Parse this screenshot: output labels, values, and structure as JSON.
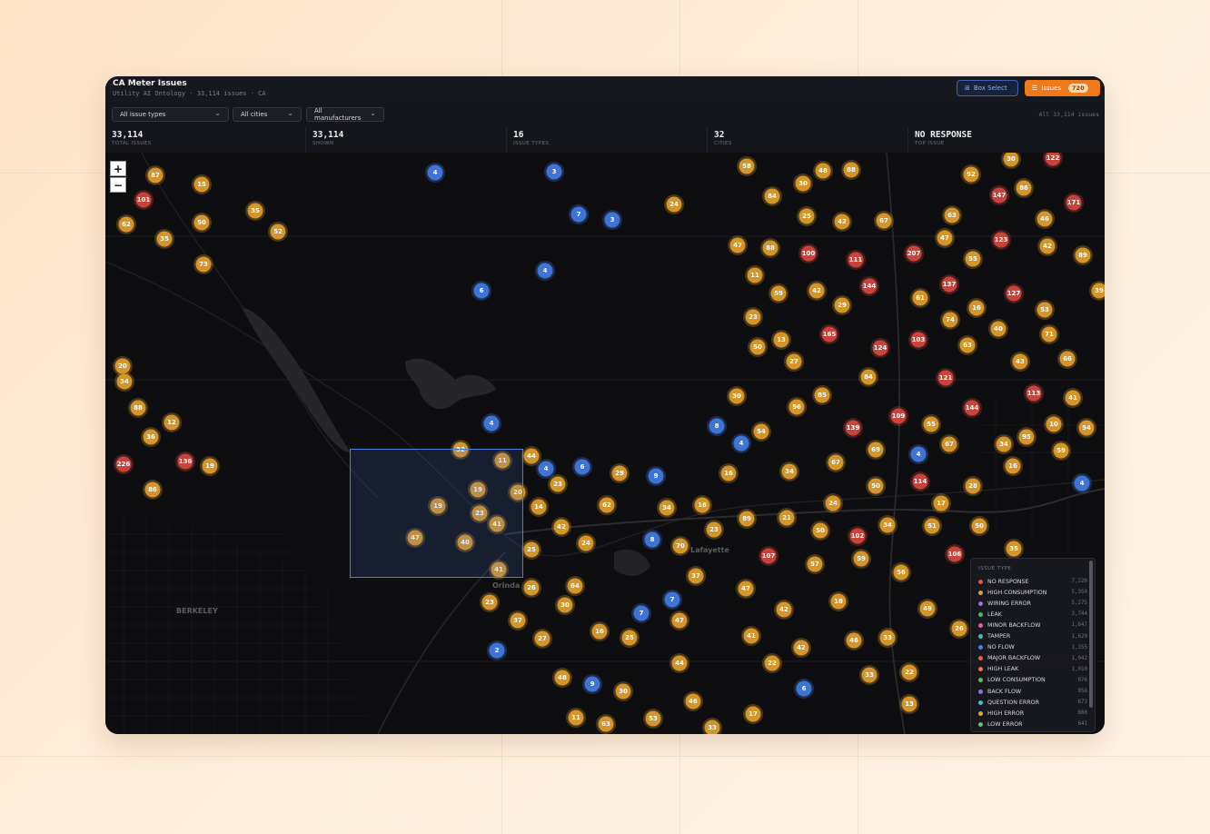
{
  "header": {
    "title": "CA Meter Issues",
    "subtitle": "Utility AI Ontology · 33,114 issues · CA",
    "box_select": "Box Select",
    "issues_button": "Issues",
    "issues_badge": "720"
  },
  "filters": {
    "issue_types": "All issue types",
    "cities": "All cities",
    "manufacturers": "All manufacturers",
    "summary": "All 33,114 issues"
  },
  "stats": [
    {
      "value": "33,114",
      "label": "TOTAL ISSUES"
    },
    {
      "value": "33,114",
      "label": "SHOWN"
    },
    {
      "value": "16",
      "label": "ISSUE TYPES"
    },
    {
      "value": "32",
      "label": "CITIES"
    },
    {
      "value": "NO RESPONSE",
      "label": "TOP ISSUE"
    }
  ],
  "map": {
    "zoom_in": "+",
    "zoom_out": "−",
    "places": [
      "BERKELEY",
      "Orinda",
      "Lafayette"
    ],
    "clusters": [
      {
        "color": "#d4962a",
        "counts": [
          87,
          15,
          62,
          50,
          35,
          52,
          35,
          73,
          24,
          58,
          30,
          48,
          88,
          84,
          25,
          42,
          67,
          47,
          88,
          47,
          55,
          63,
          92,
          30,
          86,
          46,
          42,
          89,
          11,
          59,
          42,
          29,
          61,
          39,
          23,
          50,
          13,
          74,
          16,
          53,
          40,
          71,
          63,
          27,
          84,
          43,
          66,
          30,
          56,
          85,
          41,
          55,
          10,
          54,
          54,
          34,
          95,
          67,
          69,
          59,
          16,
          67,
          34,
          50,
          28,
          20,
          34,
          88,
          12,
          36,
          19,
          86,
          32,
          11,
          44,
          29,
          16,
          23,
          19,
          20,
          19,
          23,
          41,
          14,
          62,
          34,
          16,
          24,
          17,
          47,
          40,
          42,
          24,
          70,
          23,
          89,
          21,
          50,
          34,
          51,
          50,
          25,
          41,
          35,
          57,
          59,
          56,
          26,
          64,
          37,
          47,
          23,
          30,
          47,
          42,
          18,
          49,
          37,
          16,
          25,
          27,
          41,
          42,
          46,
          33,
          26,
          44,
          22,
          33,
          22,
          48,
          30,
          46,
          13,
          11,
          63,
          53,
          17,
          33
        ]
      },
      {
        "color": "#c9433a",
        "counts": [
          101,
          100,
          111,
          207,
          122,
          147,
          171,
          123,
          144,
          137,
          127,
          165,
          124,
          103,
          121,
          113,
          144,
          109,
          139,
          114,
          226,
          136,
          102,
          106,
          107
        ]
      },
      {
        "color": "#3f73d6",
        "counts": [
          4,
          3,
          7,
          3,
          4,
          6,
          8,
          4,
          4,
          4,
          4,
          4,
          6,
          9,
          8,
          7,
          7,
          2,
          9,
          6
        ]
      }
    ]
  },
  "legend": {
    "title": "ISSUE TYPE",
    "items": [
      {
        "name": "NO RESPONSE",
        "count": "7,229",
        "color": "#e0524a"
      },
      {
        "name": "HIGH CONSUMPTION",
        "count": "5,350",
        "color": "#e5a030"
      },
      {
        "name": "WIRING ERROR",
        "count": "5,275",
        "color": "#9b6ee0"
      },
      {
        "name": "LEAK",
        "count": "3,744",
        "color": "#3fbf72"
      },
      {
        "name": "MINOR BACKFLOW",
        "count": "1,647",
        "color": "#e05ca0"
      },
      {
        "name": "TAMPER",
        "count": "1,620",
        "color": "#3fc0b0"
      },
      {
        "name": "NO FLOW",
        "count": "1,355",
        "color": "#4a7fe0"
      },
      {
        "name": "MAJOR BACKFLOW",
        "count": "1,042",
        "color": "#e86050"
      },
      {
        "name": "HIGH LEAK",
        "count": "1,010",
        "color": "#f07040"
      },
      {
        "name": "LOW CONSUMPTION",
        "count": "976",
        "color": "#5cc060"
      },
      {
        "name": "BACK FLOW",
        "count": "958",
        "color": "#8a70e0"
      },
      {
        "name": "QUESTION ERROR",
        "count": "673",
        "color": "#40c0d0"
      },
      {
        "name": "HIGH ERROR",
        "count": "660",
        "color": "#f0a030"
      },
      {
        "name": "LOW ERROR",
        "count": "641",
        "color": "#60c070"
      }
    ]
  }
}
